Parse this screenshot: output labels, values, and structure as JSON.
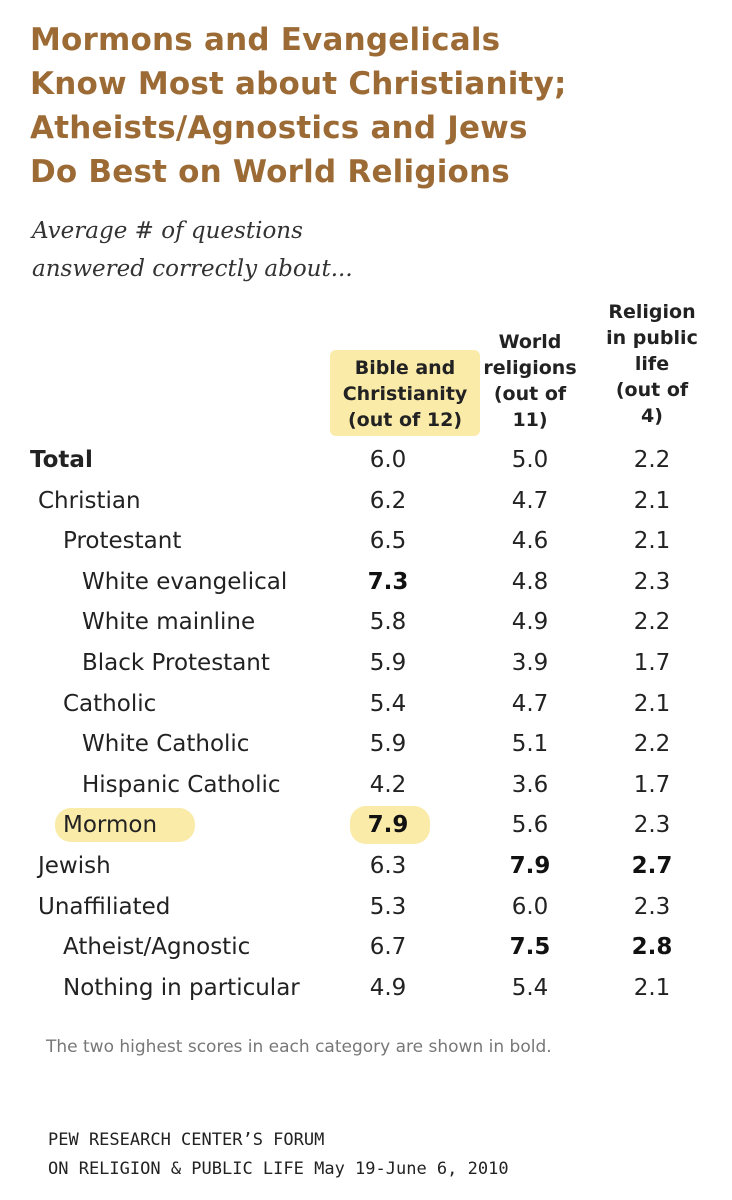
{
  "title_lines": [
    "Mormons and Evangelicals",
    "Know Most about Christianity;",
    "Atheists/Agnostics and Jews",
    "Do Best on World Religions"
  ],
  "subtitle_lines": [
    "Average # of questions",
    "answered correctly about..."
  ],
  "columns": [
    {
      "lines": [
        "Bible and",
        "Christianity",
        "(out of 12)"
      ]
    },
    {
      "lines": [
        "World",
        "religions",
        "(out of",
        "11)"
      ]
    },
    {
      "lines": [
        "Religion",
        "in public",
        "life",
        "(out of",
        "4)"
      ]
    }
  ],
  "highlight_color": "#f9e79a",
  "title_color": "#9c6b35",
  "rows": [
    {
      "label": "Total",
      "indent": 0,
      "bold_label": true,
      "values": [
        "6.0",
        "5.0",
        "2.2"
      ],
      "bold": [
        false,
        false,
        false
      ]
    },
    {
      "label": "Christian",
      "indent": 1,
      "bold_label": false,
      "values": [
        "6.2",
        "4.7",
        "2.1"
      ],
      "bold": [
        false,
        false,
        false
      ]
    },
    {
      "label": "Protestant",
      "indent": 2,
      "bold_label": false,
      "values": [
        "6.5",
        "4.6",
        "2.1"
      ],
      "bold": [
        false,
        false,
        false
      ]
    },
    {
      "label": "White evangelical",
      "indent": 3,
      "bold_label": false,
      "values": [
        "7.3",
        "4.8",
        "2.3"
      ],
      "bold": [
        true,
        false,
        false
      ]
    },
    {
      "label": "White mainline",
      "indent": 3,
      "bold_label": false,
      "values": [
        "5.8",
        "4.9",
        "2.2"
      ],
      "bold": [
        false,
        false,
        false
      ]
    },
    {
      "label": "Black Protestant",
      "indent": 3,
      "bold_label": false,
      "values": [
        "5.9",
        "3.9",
        "1.7"
      ],
      "bold": [
        false,
        false,
        false
      ]
    },
    {
      "label": "Catholic",
      "indent": 2,
      "bold_label": false,
      "values": [
        "5.4",
        "4.7",
        "2.1"
      ],
      "bold": [
        false,
        false,
        false
      ]
    },
    {
      "label": "White Catholic",
      "indent": 3,
      "bold_label": false,
      "values": [
        "5.9",
        "5.1",
        "2.2"
      ],
      "bold": [
        false,
        false,
        false
      ]
    },
    {
      "label": "Hispanic Catholic",
      "indent": 3,
      "bold_label": false,
      "values": [
        "4.2",
        "3.6",
        "1.7"
      ],
      "bold": [
        false,
        false,
        false
      ]
    },
    {
      "label": "Mormon",
      "indent": 2,
      "bold_label": false,
      "highlight": true,
      "values": [
        "7.9",
        "5.6",
        "2.3"
      ],
      "bold": [
        true,
        false,
        false
      ]
    },
    {
      "label": "Jewish",
      "indent": 1,
      "bold_label": false,
      "values": [
        "6.3",
        "7.9",
        "2.7"
      ],
      "bold": [
        false,
        true,
        true
      ]
    },
    {
      "label": "Unaffiliated",
      "indent": 1,
      "bold_label": false,
      "values": [
        "5.3",
        "6.0",
        "2.3"
      ],
      "bold": [
        false,
        false,
        false
      ]
    },
    {
      "label": "Atheist/Agnostic",
      "indent": 2,
      "bold_label": false,
      "values": [
        "6.7",
        "7.5",
        "2.8"
      ],
      "bold": [
        false,
        true,
        true
      ]
    },
    {
      "label": "Nothing in particular",
      "indent": 2,
      "bold_label": false,
      "values": [
        "4.9",
        "5.4",
        "2.1"
      ],
      "bold": [
        false,
        false,
        false
      ]
    }
  ],
  "note": "The two highest scores in each category are shown in bold.",
  "source_lines": [
    "PEW RESEARCH CENTER’S FORUM",
    "ON RELIGION & PUBLIC LIFE May 19-June 6, 2010"
  ],
  "chart_data": {
    "type": "table",
    "title": "Mormons and Evangelicals Know Most about Christianity; Atheists/Agnostics and Jews Do Best on World Religions",
    "subtitle": "Average # of questions answered correctly about...",
    "columns": [
      "Bible and Christianity (out of 12)",
      "World religions (out of 11)",
      "Religion in public life (out of 4)"
    ],
    "rows": [
      {
        "group": "Total",
        "values": [
          6.0,
          5.0,
          2.2
        ]
      },
      {
        "group": "Christian",
        "values": [
          6.2,
          4.7,
          2.1
        ]
      },
      {
        "group": "Protestant",
        "values": [
          6.5,
          4.6,
          2.1
        ]
      },
      {
        "group": "White evangelical",
        "values": [
          7.3,
          4.8,
          2.3
        ]
      },
      {
        "group": "White mainline",
        "values": [
          5.8,
          4.9,
          2.2
        ]
      },
      {
        "group": "Black Protestant",
        "values": [
          5.9,
          3.9,
          1.7
        ]
      },
      {
        "group": "Catholic",
        "values": [
          5.4,
          4.7,
          2.1
        ]
      },
      {
        "group": "White Catholic",
        "values": [
          5.9,
          5.1,
          2.2
        ]
      },
      {
        "group": "Hispanic Catholic",
        "values": [
          4.2,
          3.6,
          1.7
        ]
      },
      {
        "group": "Mormon",
        "values": [
          7.9,
          5.6,
          2.3
        ]
      },
      {
        "group": "Jewish",
        "values": [
          6.3,
          7.9,
          2.7
        ]
      },
      {
        "group": "Unaffiliated",
        "values": [
          5.3,
          6.0,
          2.3
        ]
      },
      {
        "group": "Atheist/Agnostic",
        "values": [
          6.7,
          7.5,
          2.8
        ]
      },
      {
        "group": "Nothing in particular",
        "values": [
          4.9,
          5.4,
          2.1
        ]
      }
    ],
    "maxima": [
      12,
      11,
      4
    ]
  }
}
